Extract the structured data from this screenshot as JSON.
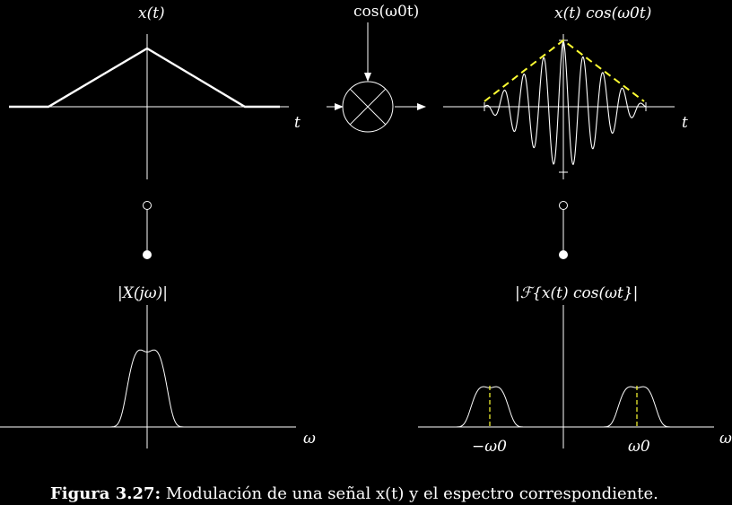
{
  "labels": {
    "x_t": "x(t)",
    "cos_w0t": "cos(ω0t)",
    "x_cos": "x(t) cos(ω0t)",
    "t_left": "t",
    "t_right": "t",
    "X_jw": "|X(jω)|",
    "F_mod": "|ℱ{x(t) cos(ωt}|",
    "omega_left": "ω",
    "omega_right": "ω",
    "neg_w0": "−ω0",
    "pos_w0": "ω0"
  },
  "caption": {
    "bold": "Figura 3.27:",
    "text": " Modulación de una señal x(t) y el espectro correspondiente."
  },
  "colors": {
    "background": "#000000",
    "stroke": "#ffffff",
    "envelope": "#ffff33"
  },
  "icons": {
    "multiplier": "circle-with-cross",
    "transform_pair": "open-circle-filled-circle-connector"
  }
}
